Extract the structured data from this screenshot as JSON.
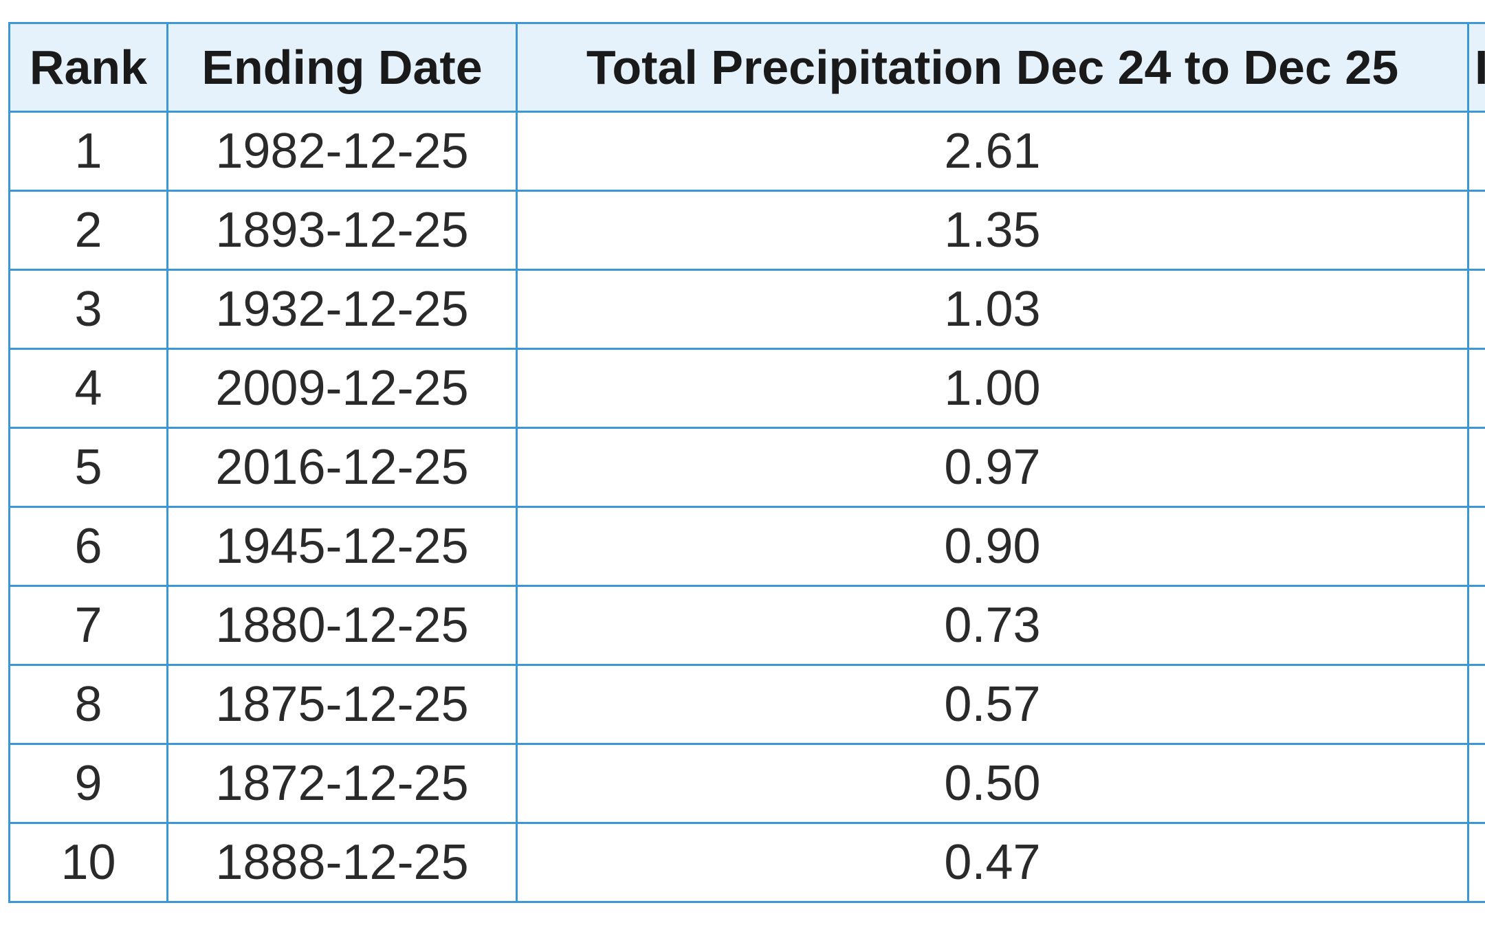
{
  "table": {
    "headers": {
      "rank": "Rank",
      "ending_date": "Ending Date",
      "total_precipitation": "Total Precipitation Dec 24 to Dec 25",
      "extra_partial": "I"
    },
    "rows": [
      {
        "rank": "1",
        "ending_date": "1982-12-25",
        "total_precipitation": "2.61"
      },
      {
        "rank": "2",
        "ending_date": "1893-12-25",
        "total_precipitation": "1.35"
      },
      {
        "rank": "3",
        "ending_date": "1932-12-25",
        "total_precipitation": "1.03"
      },
      {
        "rank": "4",
        "ending_date": "2009-12-25",
        "total_precipitation": "1.00"
      },
      {
        "rank": "5",
        "ending_date": "2016-12-25",
        "total_precipitation": "0.97"
      },
      {
        "rank": "6",
        "ending_date": "1945-12-25",
        "total_precipitation": "0.90"
      },
      {
        "rank": "7",
        "ending_date": "1880-12-25",
        "total_precipitation": "0.73"
      },
      {
        "rank": "8",
        "ending_date": "1875-12-25",
        "total_precipitation": "0.57"
      },
      {
        "rank": "9",
        "ending_date": "1872-12-25",
        "total_precipitation": "0.50"
      },
      {
        "rank": "10",
        "ending_date": "1888-12-25",
        "total_precipitation": "0.47"
      }
    ]
  },
  "colors": {
    "border": "#3b97d6",
    "header_background": "#e5f1fb"
  }
}
